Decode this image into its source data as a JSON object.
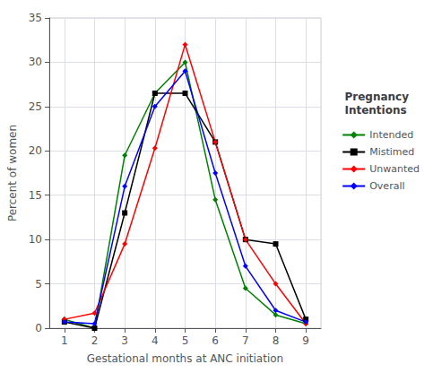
{
  "chart_data": {
    "type": "line",
    "x": [
      1,
      2,
      3,
      4,
      5,
      6,
      7,
      8,
      9
    ],
    "series": [
      {
        "name": "Intended",
        "color": "#008000",
        "marker": "diamond",
        "values": [
          1.0,
          0.0,
          19.5,
          26.5,
          30.0,
          14.5,
          4.5,
          1.5,
          0.5
        ]
      },
      {
        "name": "Mistimed",
        "color": "#000000",
        "marker": "square",
        "values": [
          0.7,
          0.0,
          13.0,
          26.5,
          26.5,
          21.0,
          10.0,
          9.5,
          1.0
        ]
      },
      {
        "name": "Unwanted",
        "color": "#ff0000",
        "marker": "diamond",
        "values": [
          1.0,
          1.7,
          9.5,
          20.3,
          32.0,
          21.0,
          10.0,
          5.0,
          0.5
        ]
      },
      {
        "name": "Overall",
        "color": "#0000ff",
        "marker": "diamond",
        "values": [
          0.7,
          0.5,
          16.0,
          25.0,
          29.0,
          17.5,
          7.0,
          2.0,
          0.7
        ]
      }
    ],
    "xlabel": "Gestational months at ANC initiation",
    "ylabel": "Percent of women",
    "legend_title": "Pregnancy\nIntentions",
    "xlim": [
      0.5,
      9.5
    ],
    "xticks": [
      1,
      2,
      3,
      4,
      5,
      6,
      7,
      8,
      9
    ],
    "ylim": [
      0,
      35
    ],
    "yticks": [
      0,
      5,
      10,
      15,
      20,
      25,
      30,
      35
    ],
    "grid": true,
    "legend": "right"
  }
}
